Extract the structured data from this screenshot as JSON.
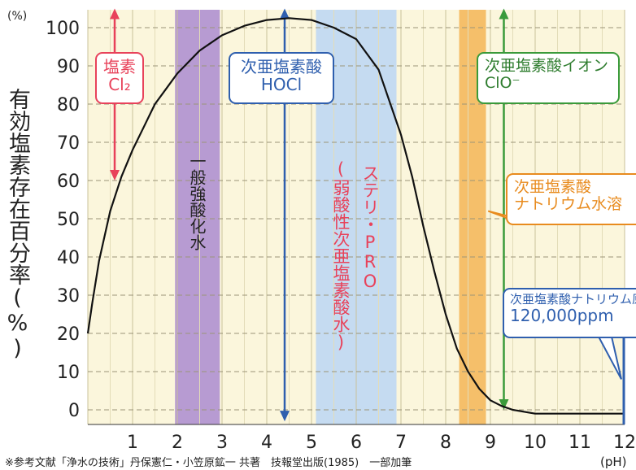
{
  "chart_data": {
    "type": "line",
    "xlabel": "(pH)",
    "ylabel": "有効塩素存在百分率(%)",
    "y_unit": "(%)",
    "x_ticks": [
      1,
      2,
      3,
      4,
      5,
      6,
      7,
      8,
      9,
      10,
      11,
      12
    ],
    "y_ticks": [
      0,
      10,
      20,
      30,
      40,
      50,
      60,
      70,
      80,
      90,
      100
    ],
    "xlim": [
      0,
      12
    ],
    "ylim": [
      0,
      100
    ],
    "grid": true,
    "series": [
      {
        "name": "次亜塩素酸 HOCl",
        "color": "#111111",
        "x": [
          0,
          0.1,
          0.25,
          0.5,
          0.75,
          1,
          1.25,
          1.5,
          1.75,
          2,
          2.5,
          3,
          3.5,
          4,
          4.5,
          5,
          5.5,
          6,
          6.5,
          7,
          7.25,
          7.5,
          7.75,
          8,
          8.25,
          8.5,
          8.75,
          9,
          9.25,
          9.5,
          10,
          11,
          12
        ],
        "y": [
          20,
          28,
          39,
          52,
          61,
          68,
          74,
          80,
          84,
          88,
          94,
          98,
          100.5,
          102,
          102.5,
          102,
          100,
          97,
          89,
          72,
          61,
          48,
          36,
          25,
          16,
          10,
          5.5,
          2.5,
          1,
          0,
          -1,
          -1,
          -1
        ]
      }
    ],
    "bands": [
      {
        "name": "一般強酸化水",
        "from": 1.95,
        "to": 2.95,
        "color": "#b79bd2"
      },
      {
        "name": "ステリ・PRO (弱酸性次亜塩素酸水)",
        "from": 5.1,
        "to": 6.9,
        "color": "#c5dbf1"
      },
      {
        "name": "次亜塩素酸ナトリウム水溶液",
        "from": 8.3,
        "to": 8.9,
        "color": "#f5bf6a"
      }
    ],
    "ranges": [
      {
        "label": "塩素 Cl2",
        "from_x": 0.6,
        "y_from": 60,
        "y_to": 105,
        "color": "#e8425a"
      },
      {
        "label": "次亜塩素酸 HOCl",
        "from_x": 4.4,
        "y_from": -3,
        "y_to": 105,
        "color": "#2f5fae"
      },
      {
        "label": "次亜塩素酸イオン ClO-",
        "from_x": 9.3,
        "y_from": 0,
        "y_to": 105,
        "color": "#3a9a3a"
      }
    ],
    "annotations": [
      {
        "text": "次亜塩素酸ナトリウム水溶",
        "color": "#e88b1e"
      },
      {
        "text": "次亜塩素酸ナトリウム原",
        "color": "#2f5fae"
      },
      {
        "text": "120,000ppm",
        "color": "#2f5fae"
      }
    ]
  },
  "labels": {
    "unit_pct": "(%)",
    "unit_ph": "(pH)",
    "ylabel": "有効塩素存在百分率(%)",
    "cl2_line1": "塩素",
    "cl2_line2": "Cl₂",
    "hocl_line1": "次亜塩素酸",
    "hocl_line2": "HOCl",
    "clo_line1": "次亜塩素酸イオン",
    "clo_line2": "ClO⁻",
    "band_acid": "一般強酸化水",
    "band_steri": "ステリ・PRO",
    "band_steri_sub": "(弱酸性次亜塩素酸水)",
    "naocl_solution_line1": "次亜塩素酸",
    "naocl_solution_line2": "ナトリウム水溶",
    "naocl_stock_line1": "次亜塩素酸ナトリウム原",
    "naocl_stock_line2": "120,000ppm",
    "source": "※参考文献「浄水の技術」丹保憲仁・小笠原鉱一 共著　技報堂出版(1985)　一部加筆"
  }
}
